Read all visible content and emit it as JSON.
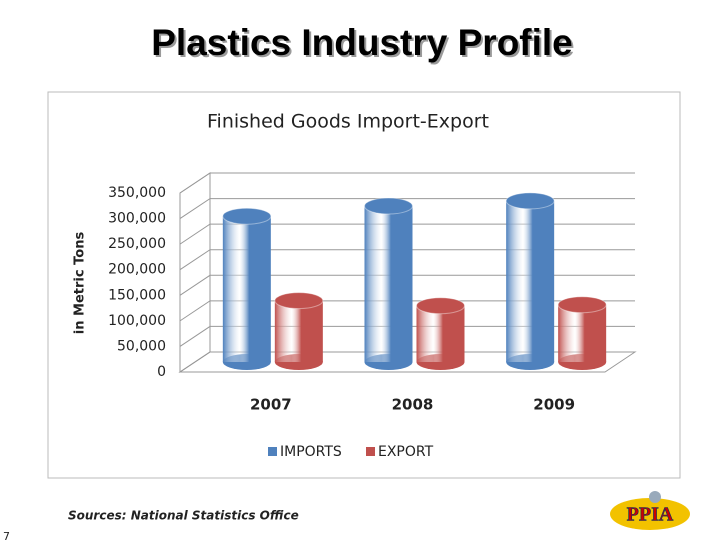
{
  "slide_title": "Plastics Industry Profile",
  "chart_data": {
    "type": "bar3d",
    "title": "Finished Goods Import-Export",
    "y_label": "in Metric Tons",
    "categories": [
      "2007",
      "2008",
      "2009"
    ],
    "series": [
      {
        "name": "IMPORTS",
        "color": "#4f81bd",
        "values": [
          285000,
          305000,
          315000
        ]
      },
      {
        "name": "EXPORT",
        "color": "#c0504d",
        "values": [
          120000,
          110000,
          112000
        ]
      }
    ],
    "ylim": [
      0,
      350000
    ],
    "yticks": [
      0,
      {
        "value": 50000,
        "label": "50,000"
      },
      {
        "value": 100000,
        "label": "100,000"
      },
      {
        "value": 150000,
        "label": "150,000"
      },
      {
        "value": 200000,
        "label": "200,000"
      },
      {
        "value": 250000,
        "label": "250,000"
      },
      {
        "value": 300000,
        "label": "300,000"
      },
      {
        "value": 350000,
        "label": "350,000"
      }
    ],
    "grid": true,
    "legend": "bottom"
  },
  "source": "Sources: National Statistics Office",
  "page_number": "7",
  "logo": "PPIA"
}
